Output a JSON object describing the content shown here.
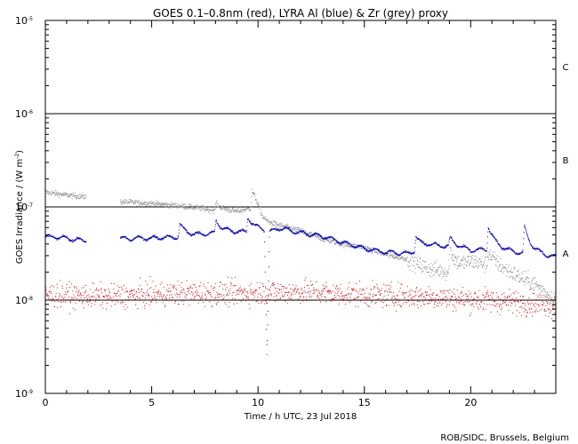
{
  "chart_data": {
    "type": "scatter",
    "title": "GOES 0.1–0.8nm (red), LYRA Al (blue) & Zr (grey) proxy",
    "xlabel": "Time / h UTC, 23 Jul 2018",
    "ylabel_main": "GOES Irradiance / (W m",
    "ylabel_exp": "-2",
    "ylabel_end": ")",
    "credit": "ROB/SIDC, Brussels, Belgium",
    "xlim": [
      0,
      24
    ],
    "ylim": [
      1e-09,
      1e-05
    ],
    "yscale": "log",
    "x_ticks": [
      "0",
      "5",
      "10",
      "15",
      "20"
    ],
    "y_ticks": [
      {
        "base": "10",
        "exp": "-5"
      },
      {
        "base": "10",
        "exp": "-6"
      },
      {
        "base": "10",
        "exp": "-7"
      },
      {
        "base": "10",
        "exp": "-8"
      },
      {
        "base": "10",
        "exp": "-9"
      }
    ],
    "flare_class_lines": [
      1e-08,
      1e-07,
      1e-06
    ],
    "flare_classes": [
      {
        "label": "C",
        "y": 3.2e-06
      },
      {
        "label": "B",
        "y": 3.2e-07
      },
      {
        "label": "A",
        "y": 3.2e-08
      }
    ],
    "series": [
      {
        "name": "GOES 0.1–0.8nm",
        "color": "#e00000",
        "baseline": [
          [
            0,
            1.15e-08
          ],
          [
            3,
            1.1e-08
          ],
          [
            6,
            1.2e-08
          ],
          [
            9,
            1.2e-08
          ],
          [
            12,
            1.25e-08
          ],
          [
            15,
            1.15e-08
          ],
          [
            18,
            1.1e-08
          ],
          [
            21,
            1e-08
          ],
          [
            24,
            9e-09
          ]
        ],
        "scatter_dex": 0.13
      },
      {
        "name": "LYRA Al",
        "color": "#0000c8",
        "baseline": [
          [
            0,
            4.8e-08
          ],
          [
            0.5,
            4.8e-08
          ],
          [
            1.8,
            4.4e-08
          ],
          [
            3.5,
            4.6e-08
          ],
          [
            5,
            4.7e-08
          ],
          [
            6,
            4.8e-08
          ],
          [
            7,
            5e-08
          ],
          [
            8,
            5.3e-08
          ],
          [
            9,
            5.4e-08
          ],
          [
            10.2,
            5.6e-08
          ],
          [
            10.5,
            5.3e-08
          ],
          [
            11,
            6e-08
          ],
          [
            12,
            5.3e-08
          ],
          [
            13,
            4.9e-08
          ],
          [
            14,
            4.2e-08
          ],
          [
            15,
            3.6e-08
          ],
          [
            16,
            3.3e-08
          ],
          [
            17,
            3.2e-08
          ],
          [
            18,
            3.9e-08
          ],
          [
            19,
            3.8e-08
          ],
          [
            20,
            3.4e-08
          ],
          [
            21,
            3.6e-08
          ],
          [
            22,
            3.3e-08
          ],
          [
            23,
            3.1e-08
          ],
          [
            24,
            2.9e-08
          ]
        ],
        "gaps": [
          [
            1.9,
            3.5
          ]
        ],
        "peaks": [
          [
            6.3,
            6.6e-08
          ],
          [
            8,
            7.2e-08
          ],
          [
            9.5,
            8e-08
          ],
          [
            17.4,
            4.9e-08
          ],
          [
            19,
            4.7e-08
          ],
          [
            20.8,
            6.3e-08
          ],
          [
            22.5,
            6.2e-08
          ]
        ],
        "dips": [
          [
            10.4,
            2.5e-09
          ]
        ]
      },
      {
        "name": "LYRA Zr",
        "color": "#8a8a8a",
        "baseline": [
          [
            0,
            1.45e-07
          ],
          [
            1,
            1.35e-07
          ],
          [
            1.8,
            1.3e-07
          ],
          [
            3.5,
            1.15e-07
          ],
          [
            5,
            1.1e-07
          ],
          [
            6,
            1.05e-07
          ],
          [
            7,
            1e-07
          ],
          [
            8,
            9.2e-08
          ],
          [
            9,
            9e-08
          ],
          [
            9.8,
            1e-07
          ],
          [
            10.2,
            6.5e-08
          ],
          [
            11,
            6.3e-08
          ],
          [
            12,
            5.6e-08
          ],
          [
            13,
            4.6e-08
          ],
          [
            14,
            4e-08
          ],
          [
            15,
            3.7e-08
          ],
          [
            16,
            3.1e-08
          ],
          [
            17,
            2.8e-08
          ],
          [
            18,
            2.2e-08
          ],
          [
            19,
            2e-08
          ],
          [
            20,
            2.6e-08
          ],
          [
            21,
            2.4e-08
          ],
          [
            22,
            1.9e-08
          ],
          [
            23,
            1.5e-08
          ],
          [
            24,
            1e-08
          ]
        ],
        "gaps": [
          [
            1.9,
            3.5
          ]
        ],
        "peaks": [
          [
            9.7,
            1.5e-07
          ],
          [
            8,
            1.1e-07
          ],
          [
            19,
            3.6e-08
          ],
          [
            20.8,
            3.3e-08
          ]
        ]
      }
    ]
  }
}
